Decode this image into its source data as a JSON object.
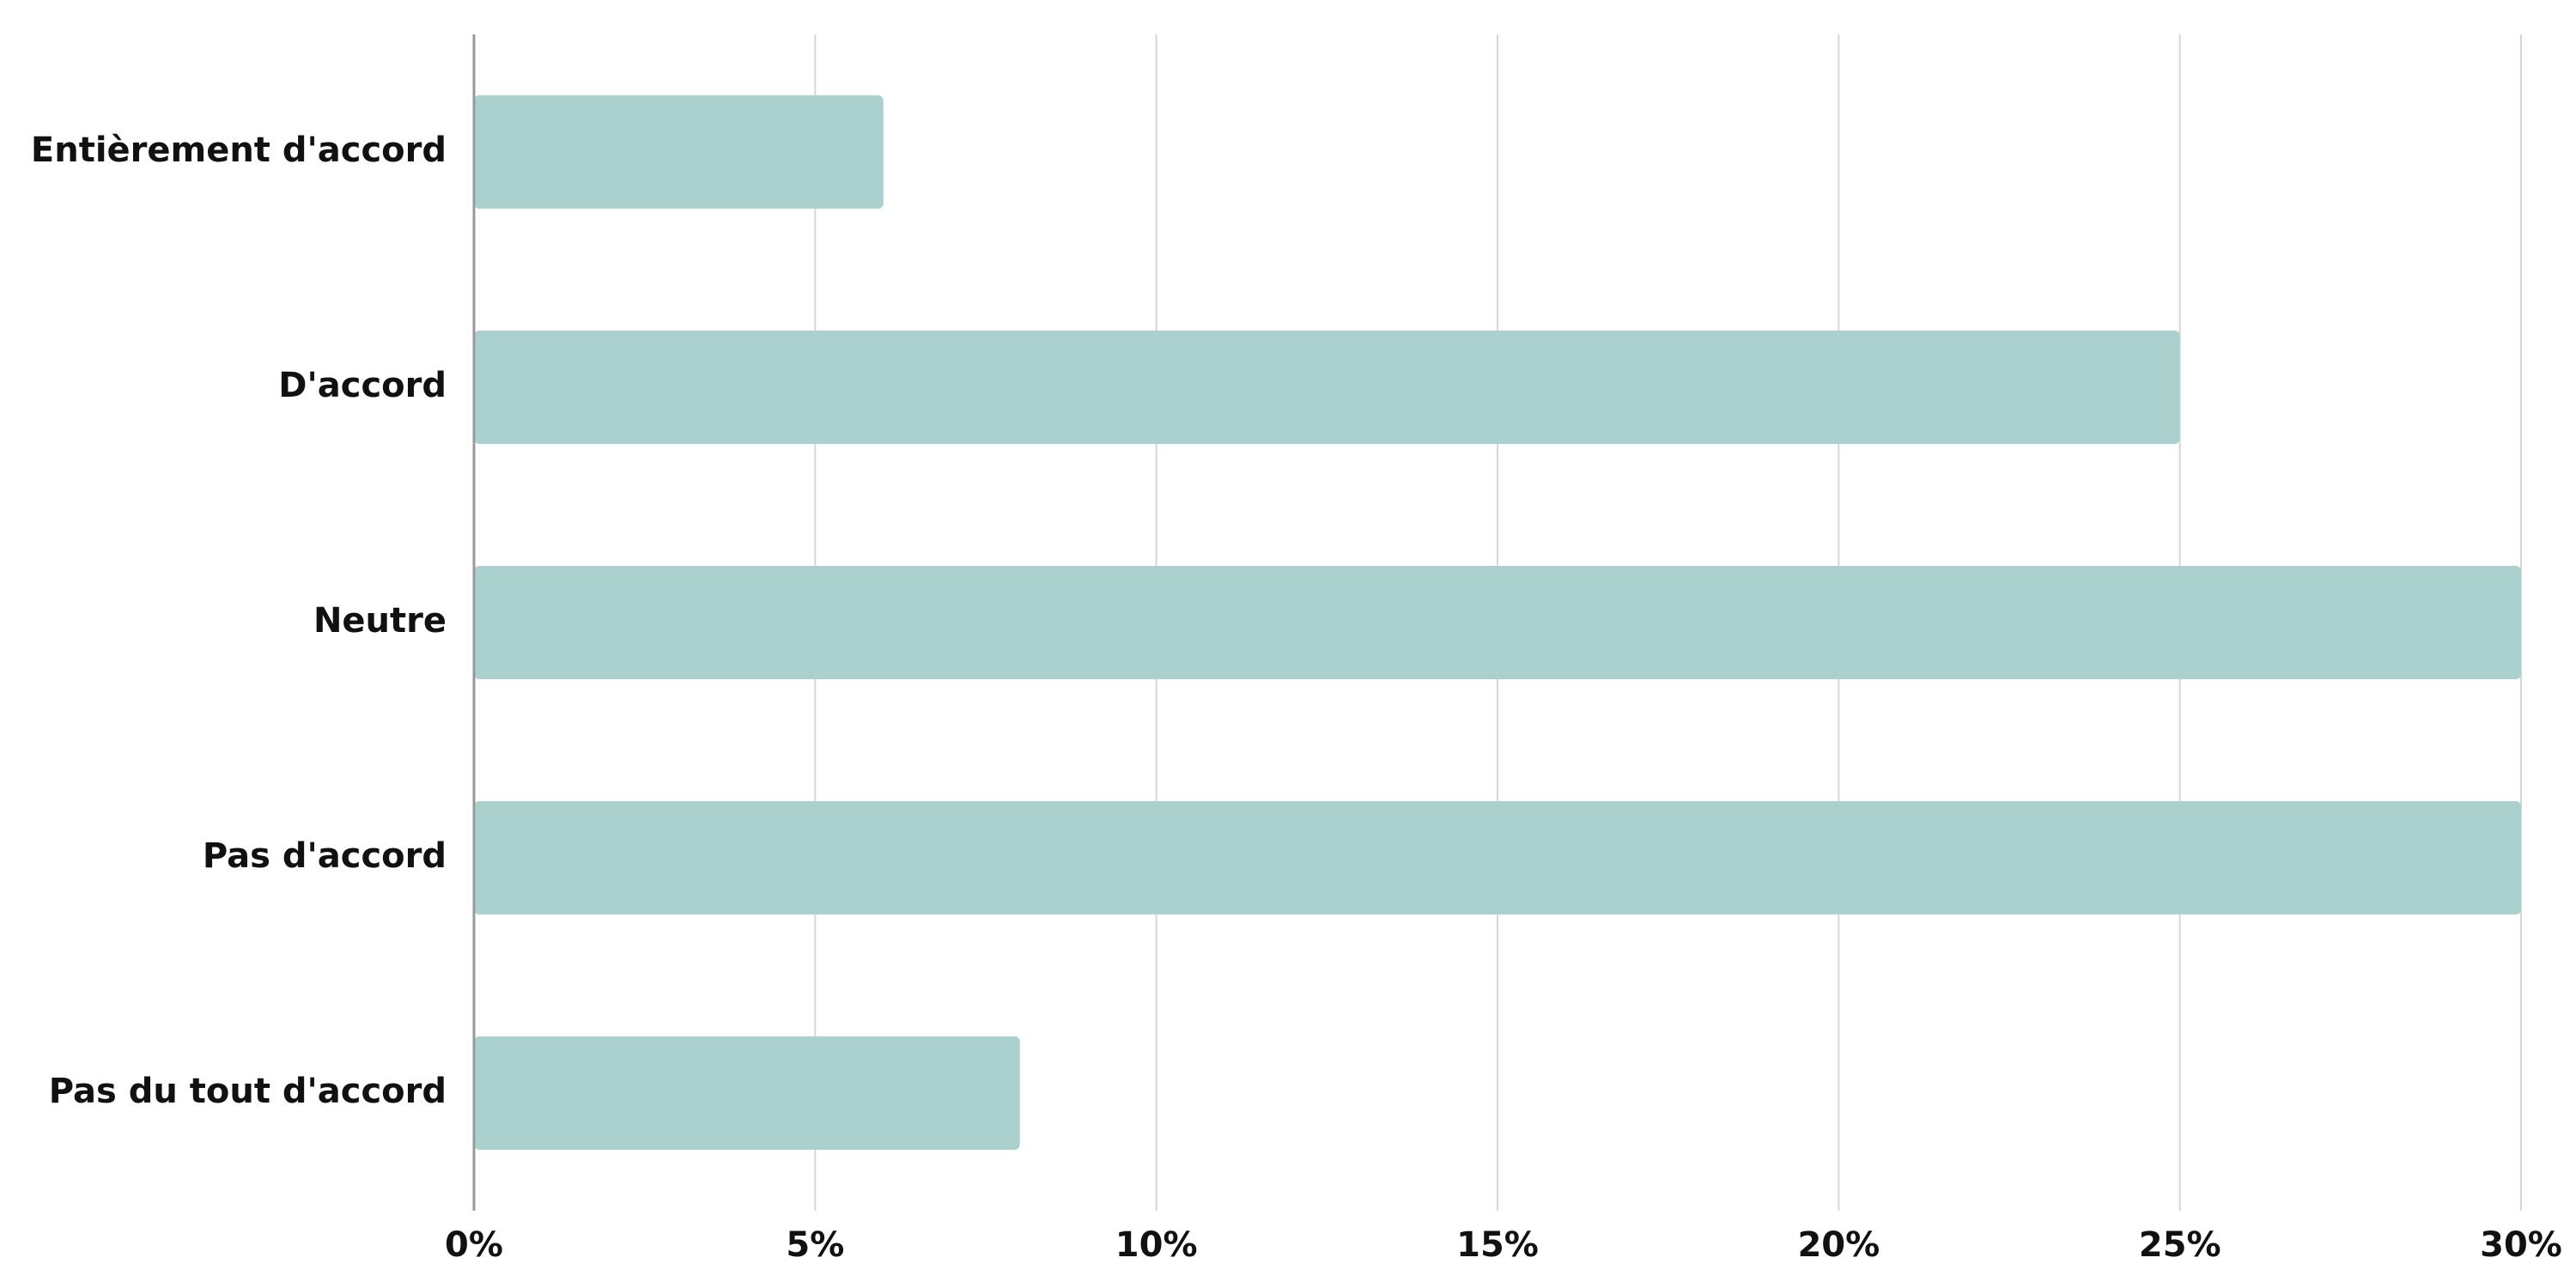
{
  "chart_data": {
    "type": "bar",
    "orientation": "horizontal",
    "categories": [
      "Entièrement d'accord",
      "D'accord",
      "Neutre",
      "Pas d'accord",
      "Pas du tout d'accord"
    ],
    "values": [
      6,
      25,
      30,
      30,
      8
    ],
    "xlim": [
      0,
      30
    ],
    "x_ticks": [
      0,
      5,
      10,
      15,
      20,
      25,
      30
    ],
    "x_tick_labels": [
      "0%",
      "5%",
      "10%",
      "15%",
      "20%",
      "25%",
      "30%"
    ],
    "grid": "vertical",
    "legend": "none",
    "bar_color": "#aad1ce",
    "title": "",
    "xlabel": "",
    "ylabel": ""
  }
}
